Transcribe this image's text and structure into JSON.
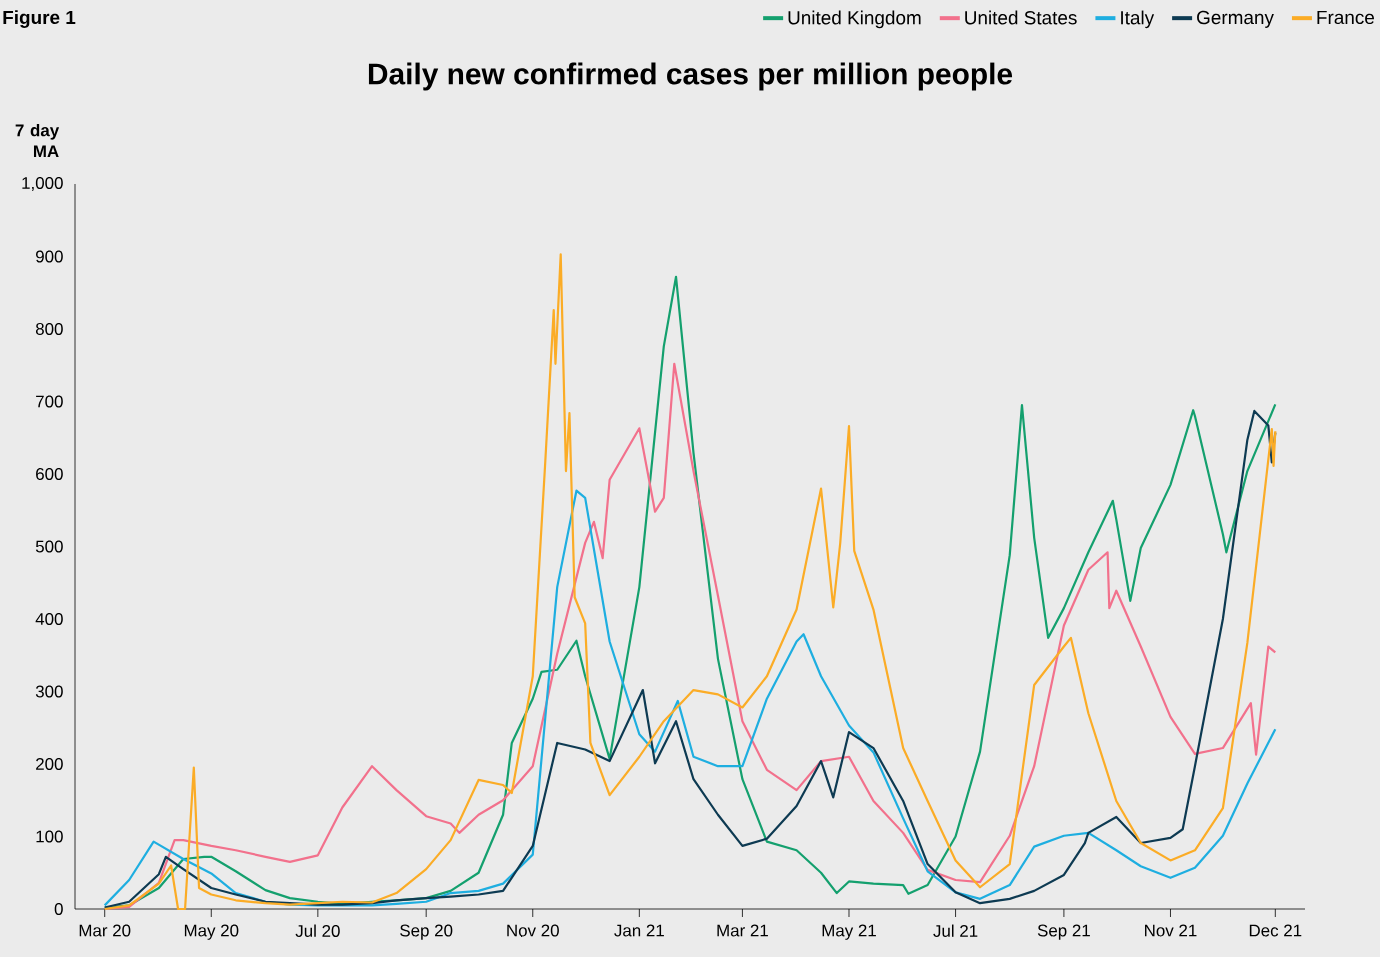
{
  "chart_data": {
    "type": "line",
    "title": "Daily new confirmed cases per million people",
    "ylabel": "7 day MA",
    "annotations": [
      "Figure 1"
    ],
    "legend": "top right",
    "xlim": [
      "2020-02-13",
      "2022-01-17"
    ],
    "ylim": [
      0,
      1000
    ],
    "xticks": [
      {
        "value": "2020-03-01",
        "label": "Mar 20"
      },
      {
        "value": "2020-05-01",
        "label": "May 20"
      },
      {
        "value": "2020-07-01",
        "label": "Jul 20"
      },
      {
        "value": "2020-09-01",
        "label": "Sep 20"
      },
      {
        "value": "2020-11-01",
        "label": "Nov 20"
      },
      {
        "value": "2021-01-01",
        "label": "Jan 21"
      },
      {
        "value": "2021-03-01",
        "label": "Mar 21"
      },
      {
        "value": "2021-05-01",
        "label": "May 21"
      },
      {
        "value": "2021-07-01",
        "label": "Jul 21"
      },
      {
        "value": "2021-09-01",
        "label": "Sep 21"
      },
      {
        "value": "2021-11-01",
        "label": "Nov 21"
      },
      {
        "value": "2021-12-31",
        "label": "Dec 21"
      }
    ],
    "yticks": [
      0,
      100,
      200,
      300,
      400,
      500,
      600,
      700,
      800,
      900,
      {
        "value": 1000,
        "label": "1,000"
      }
    ],
    "series": [
      {
        "name": "United Kingdom",
        "color": "#14a06e",
        "x": [
          "2020-03-01",
          "2020-03-15",
          "2020-04-01",
          "2020-04-15",
          "2020-04-27",
          "2020-05-01",
          "2020-05-15",
          "2020-06-01",
          "2020-06-15",
          "2020-07-01",
          "2020-07-15",
          "2020-08-01",
          "2020-08-15",
          "2020-09-01",
          "2020-09-15",
          "2020-10-01",
          "2020-10-15",
          "2020-10-20",
          "2020-11-01",
          "2020-11-06",
          "2020-11-15",
          "2020-11-26",
          "2020-12-01",
          "2020-12-15",
          "2021-01-01",
          "2021-01-15",
          "2021-01-22",
          "2021-02-01",
          "2021-02-15",
          "2021-03-01",
          "2021-03-15",
          "2021-04-01",
          "2021-04-15",
          "2021-04-24",
          "2021-05-01",
          "2021-05-15",
          "2021-06-01",
          "2021-06-04",
          "2021-06-15",
          "2021-07-01",
          "2021-07-15",
          "2021-08-01",
          "2021-08-08",
          "2021-08-15",
          "2021-08-23",
          "2021-09-01",
          "2021-09-15",
          "2021-09-29",
          "2021-10-01",
          "2021-10-09",
          "2021-10-15",
          "2021-11-01",
          "2021-11-14",
          "2021-11-15",
          "2021-12-01",
          "2021-12-03",
          "2021-12-15",
          "2021-12-31"
        ],
        "values": [
          2,
          5,
          29,
          69,
          72,
          72,
          52,
          26,
          15,
          10,
          7,
          10,
          12,
          15,
          25,
          50,
          130,
          229,
          290,
          327,
          330,
          370,
          321,
          207,
          444,
          776,
          872,
          629,
          345,
          179,
          93,
          81,
          50,
          22,
          38,
          35,
          33,
          21,
          33,
          100,
          217,
          488,
          695,
          512,
          374,
          415,
          492,
          563,
          537,
          425,
          498,
          585,
          688,
          680,
          517,
          492,
          604,
          696
        ]
      },
      {
        "name": "United States",
        "color": "#f2718c",
        "x": [
          "2020-03-01",
          "2020-03-15",
          "2020-04-01",
          "2020-04-10",
          "2020-04-15",
          "2020-05-01",
          "2020-05-15",
          "2020-06-01",
          "2020-06-15",
          "2020-07-01",
          "2020-07-15",
          "2020-08-01",
          "2020-08-15",
          "2020-09-01",
          "2020-09-15",
          "2020-09-20",
          "2020-10-01",
          "2020-10-15",
          "2020-11-01",
          "2020-11-15",
          "2020-12-01",
          "2020-12-06",
          "2020-12-11",
          "2020-12-15",
          "2021-01-01",
          "2021-01-10",
          "2021-01-15",
          "2021-01-21",
          "2021-02-01",
          "2021-02-15",
          "2021-03-01",
          "2021-03-15",
          "2021-04-01",
          "2021-04-15",
          "2021-05-01",
          "2021-05-15",
          "2021-06-01",
          "2021-06-15",
          "2021-07-01",
          "2021-07-15",
          "2021-08-01",
          "2021-08-15",
          "2021-09-01",
          "2021-09-15",
          "2021-09-26",
          "2021-09-27",
          "2021-10-01",
          "2021-10-15",
          "2021-11-01",
          "2021-11-15",
          "2021-12-01",
          "2021-12-17",
          "2021-12-20",
          "2021-12-27",
          "2021-12-31"
        ],
        "values": [
          0,
          3,
          36,
          95,
          95,
          87,
          81,
          72,
          65,
          74,
          140,
          197,
          164,
          128,
          118,
          105,
          130,
          150,
          197,
          352,
          505,
          534,
          484,
          592,
          663,
          548,
          567,
          752,
          604,
          432,
          259,
          192,
          164,
          204,
          210,
          149,
          105,
          54,
          40,
          37,
          101,
          197,
          391,
          468,
          492,
          415,
          439,
          362,
          265,
          214,
          222,
          284,
          213,
          362,
          354
        ]
      },
      {
        "name": "Italy",
        "color": "#1eaee0",
        "x": [
          "2020-03-01",
          "2020-03-15",
          "2020-03-29",
          "2020-04-15",
          "2020-05-01",
          "2020-05-15",
          "2020-06-01",
          "2020-06-15",
          "2020-07-01",
          "2020-07-15",
          "2020-08-01",
          "2020-08-15",
          "2020-09-01",
          "2020-09-15",
          "2020-10-01",
          "2020-10-15",
          "2020-11-01",
          "2020-11-15",
          "2020-11-26",
          "2020-12-01",
          "2020-12-15",
          "2021-01-01",
          "2021-01-10",
          "2021-01-23",
          "2021-02-01",
          "2021-02-15",
          "2021-03-01",
          "2021-03-15",
          "2021-04-01",
          "2021-04-05",
          "2021-04-15",
          "2021-05-01",
          "2021-05-15",
          "2021-06-01",
          "2021-06-15",
          "2021-07-01",
          "2021-07-15",
          "2021-08-01",
          "2021-08-15",
          "2021-09-01",
          "2021-09-15",
          "2021-10-01",
          "2021-10-15",
          "2021-11-01",
          "2021-11-15",
          "2021-12-01",
          "2021-12-15",
          "2021-12-31"
        ],
        "values": [
          5,
          40,
          93,
          69,
          49,
          22,
          10,
          6,
          5,
          5,
          5,
          7,
          10,
          22,
          25,
          35,
          75,
          444,
          577,
          567,
          369,
          241,
          217,
          287,
          210,
          197,
          197,
          290,
          369,
          379,
          321,
          253,
          216,
          125,
          52,
          23,
          14,
          33,
          86,
          101,
          105,
          81,
          59,
          43,
          57,
          101,
          173,
          248
        ]
      },
      {
        "name": "Germany",
        "color": "#0d3a52",
        "x": [
          "2020-03-01",
          "2020-03-15",
          "2020-04-01",
          "2020-04-05",
          "2020-04-15",
          "2020-05-01",
          "2020-05-15",
          "2020-06-01",
          "2020-06-15",
          "2020-07-01",
          "2020-07-15",
          "2020-08-01",
          "2020-08-15",
          "2020-09-01",
          "2020-09-15",
          "2020-10-01",
          "2020-10-15",
          "2020-11-01",
          "2020-11-15",
          "2020-12-01",
          "2020-12-15",
          "2021-01-03",
          "2021-01-10",
          "2021-01-22",
          "2021-02-01",
          "2021-02-15",
          "2021-03-01",
          "2021-03-15",
          "2021-04-01",
          "2021-04-15",
          "2021-04-22",
          "2021-05-01",
          "2021-05-15",
          "2021-06-01",
          "2021-06-15",
          "2021-07-01",
          "2021-07-15",
          "2021-08-01",
          "2021-08-15",
          "2021-09-01",
          "2021-09-13",
          "2021-09-15",
          "2021-10-01",
          "2021-10-15",
          "2021-11-01",
          "2021-11-08",
          "2021-11-15",
          "2021-12-01",
          "2021-12-15",
          "2021-12-19",
          "2021-12-27",
          "2021-12-29",
          "2021-12-31"
        ],
        "values": [
          2,
          10,
          48,
          72,
          55,
          29,
          20,
          10,
          8,
          6,
          6,
          8,
          12,
          15,
          17,
          20,
          25,
          87,
          229,
          220,
          204,
          302,
          201,
          259,
          179,
          130,
          87,
          97,
          142,
          204,
          154,
          244,
          222,
          149,
          62,
          23,
          8,
          14,
          25,
          47,
          91,
          105,
          127,
          91,
          98,
          110,
          197,
          400,
          647,
          687,
          667,
          616,
          657
        ]
      },
      {
        "name": "France",
        "color": "#fbac26",
        "x": [
          "2020-03-01",
          "2020-03-15",
          "2020-04-01",
          "2020-04-08",
          "2020-04-12",
          "2020-04-16",
          "2020-04-21",
          "2020-04-24",
          "2020-05-01",
          "2020-05-15",
          "2020-06-01",
          "2020-06-15",
          "2020-07-01",
          "2020-07-15",
          "2020-08-01",
          "2020-08-15",
          "2020-09-01",
          "2020-09-15",
          "2020-10-01",
          "2020-10-15",
          "2020-10-20",
          "2020-11-01",
          "2020-11-08",
          "2020-11-13",
          "2020-11-14",
          "2020-11-17",
          "2020-11-20",
          "2020-11-22",
          "2020-11-25",
          "2020-12-01",
          "2020-12-04",
          "2020-12-15",
          "2021-01-01",
          "2021-01-15",
          "2021-02-01",
          "2021-02-15",
          "2021-03-01",
          "2021-03-15",
          "2021-04-01",
          "2021-04-15",
          "2021-04-22",
          "2021-04-26",
          "2021-05-01",
          "2021-05-04",
          "2021-05-15",
          "2021-06-01",
          "2021-06-15",
          "2021-07-01",
          "2021-07-15",
          "2021-08-01",
          "2021-08-15",
          "2021-09-01",
          "2021-09-05",
          "2021-09-15",
          "2021-10-01",
          "2021-10-15",
          "2021-11-01",
          "2021-11-15",
          "2021-12-01",
          "2021-12-15",
          "2021-12-29",
          "2021-12-30",
          "2021-12-31"
        ],
        "values": [
          0,
          5,
          35,
          60,
          0,
          0,
          195,
          29,
          20,
          12,
          8,
          6,
          8,
          10,
          9,
          22,
          55,
          95,
          178,
          171,
          160,
          321,
          610,
          826,
          752,
          903,
          604,
          684,
          430,
          394,
          229,
          157,
          210,
          259,
          302,
          296,
          278,
          321,
          413,
          580,
          416,
          505,
          666,
          494,
          413,
          222,
          149,
          67,
          30,
          62,
          309,
          362,
          374,
          270,
          149,
          91,
          67,
          81,
          139,
          367,
          662,
          611,
          659
        ]
      }
    ]
  }
}
